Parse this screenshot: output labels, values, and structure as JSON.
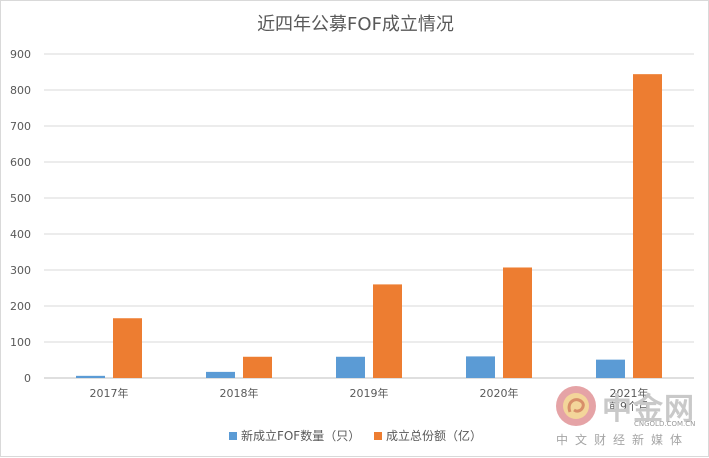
{
  "chart_data": {
    "type": "bar",
    "title": "近四年公募FOF成立情况",
    "categories": [
      "2017年",
      "2018年",
      "2019年",
      "2020年",
      "2021年\n前9个月"
    ],
    "series": [
      {
        "name": "新成立FOF数量（只）",
        "color": "#5b9bd5",
        "values": [
          6,
          17,
          59,
          60,
          51
        ]
      },
      {
        "name": "成立总份额（亿）",
        "color": "#ed7d31",
        "values": [
          166,
          59,
          260,
          307,
          844
        ]
      }
    ],
    "ylim": [
      0,
      900
    ],
    "yticks": [
      0,
      100,
      200,
      300,
      400,
      500,
      600,
      700,
      800,
      900
    ],
    "grid": true,
    "legend_position": "bottom",
    "xlabel": "",
    "ylabel": ""
  },
  "watermark": {
    "name": "中金网",
    "domain": "CNGOLD.COM.CN",
    "subtitle": "中文财经新媒体"
  }
}
